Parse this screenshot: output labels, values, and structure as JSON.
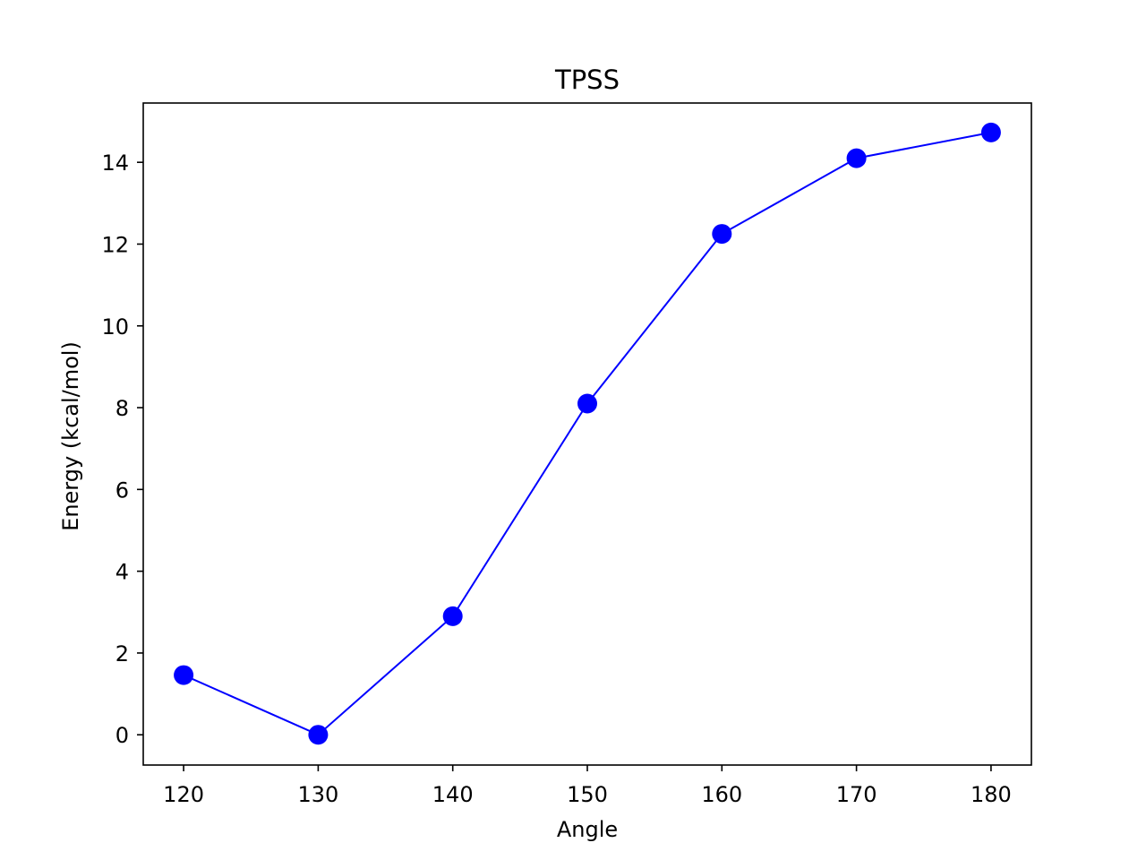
{
  "chart_data": {
    "type": "line",
    "title": "TPSS",
    "xlabel": "Angle",
    "ylabel": "Energy (kcal/mol)",
    "xlim": [
      117,
      183
    ],
    "ylim": [
      -0.74,
      15.45
    ],
    "xticks": [
      120,
      130,
      140,
      150,
      160,
      170,
      180
    ],
    "yticks": [
      0,
      2,
      4,
      6,
      8,
      10,
      12,
      14
    ],
    "grid": false,
    "series": [
      {
        "color": "#0000ff",
        "marker": "circle",
        "x": [
          120,
          130,
          140,
          150,
          160,
          170,
          180
        ],
        "y": [
          1.46,
          0.0,
          2.9,
          8.1,
          12.25,
          14.1,
          14.73
        ]
      }
    ]
  }
}
